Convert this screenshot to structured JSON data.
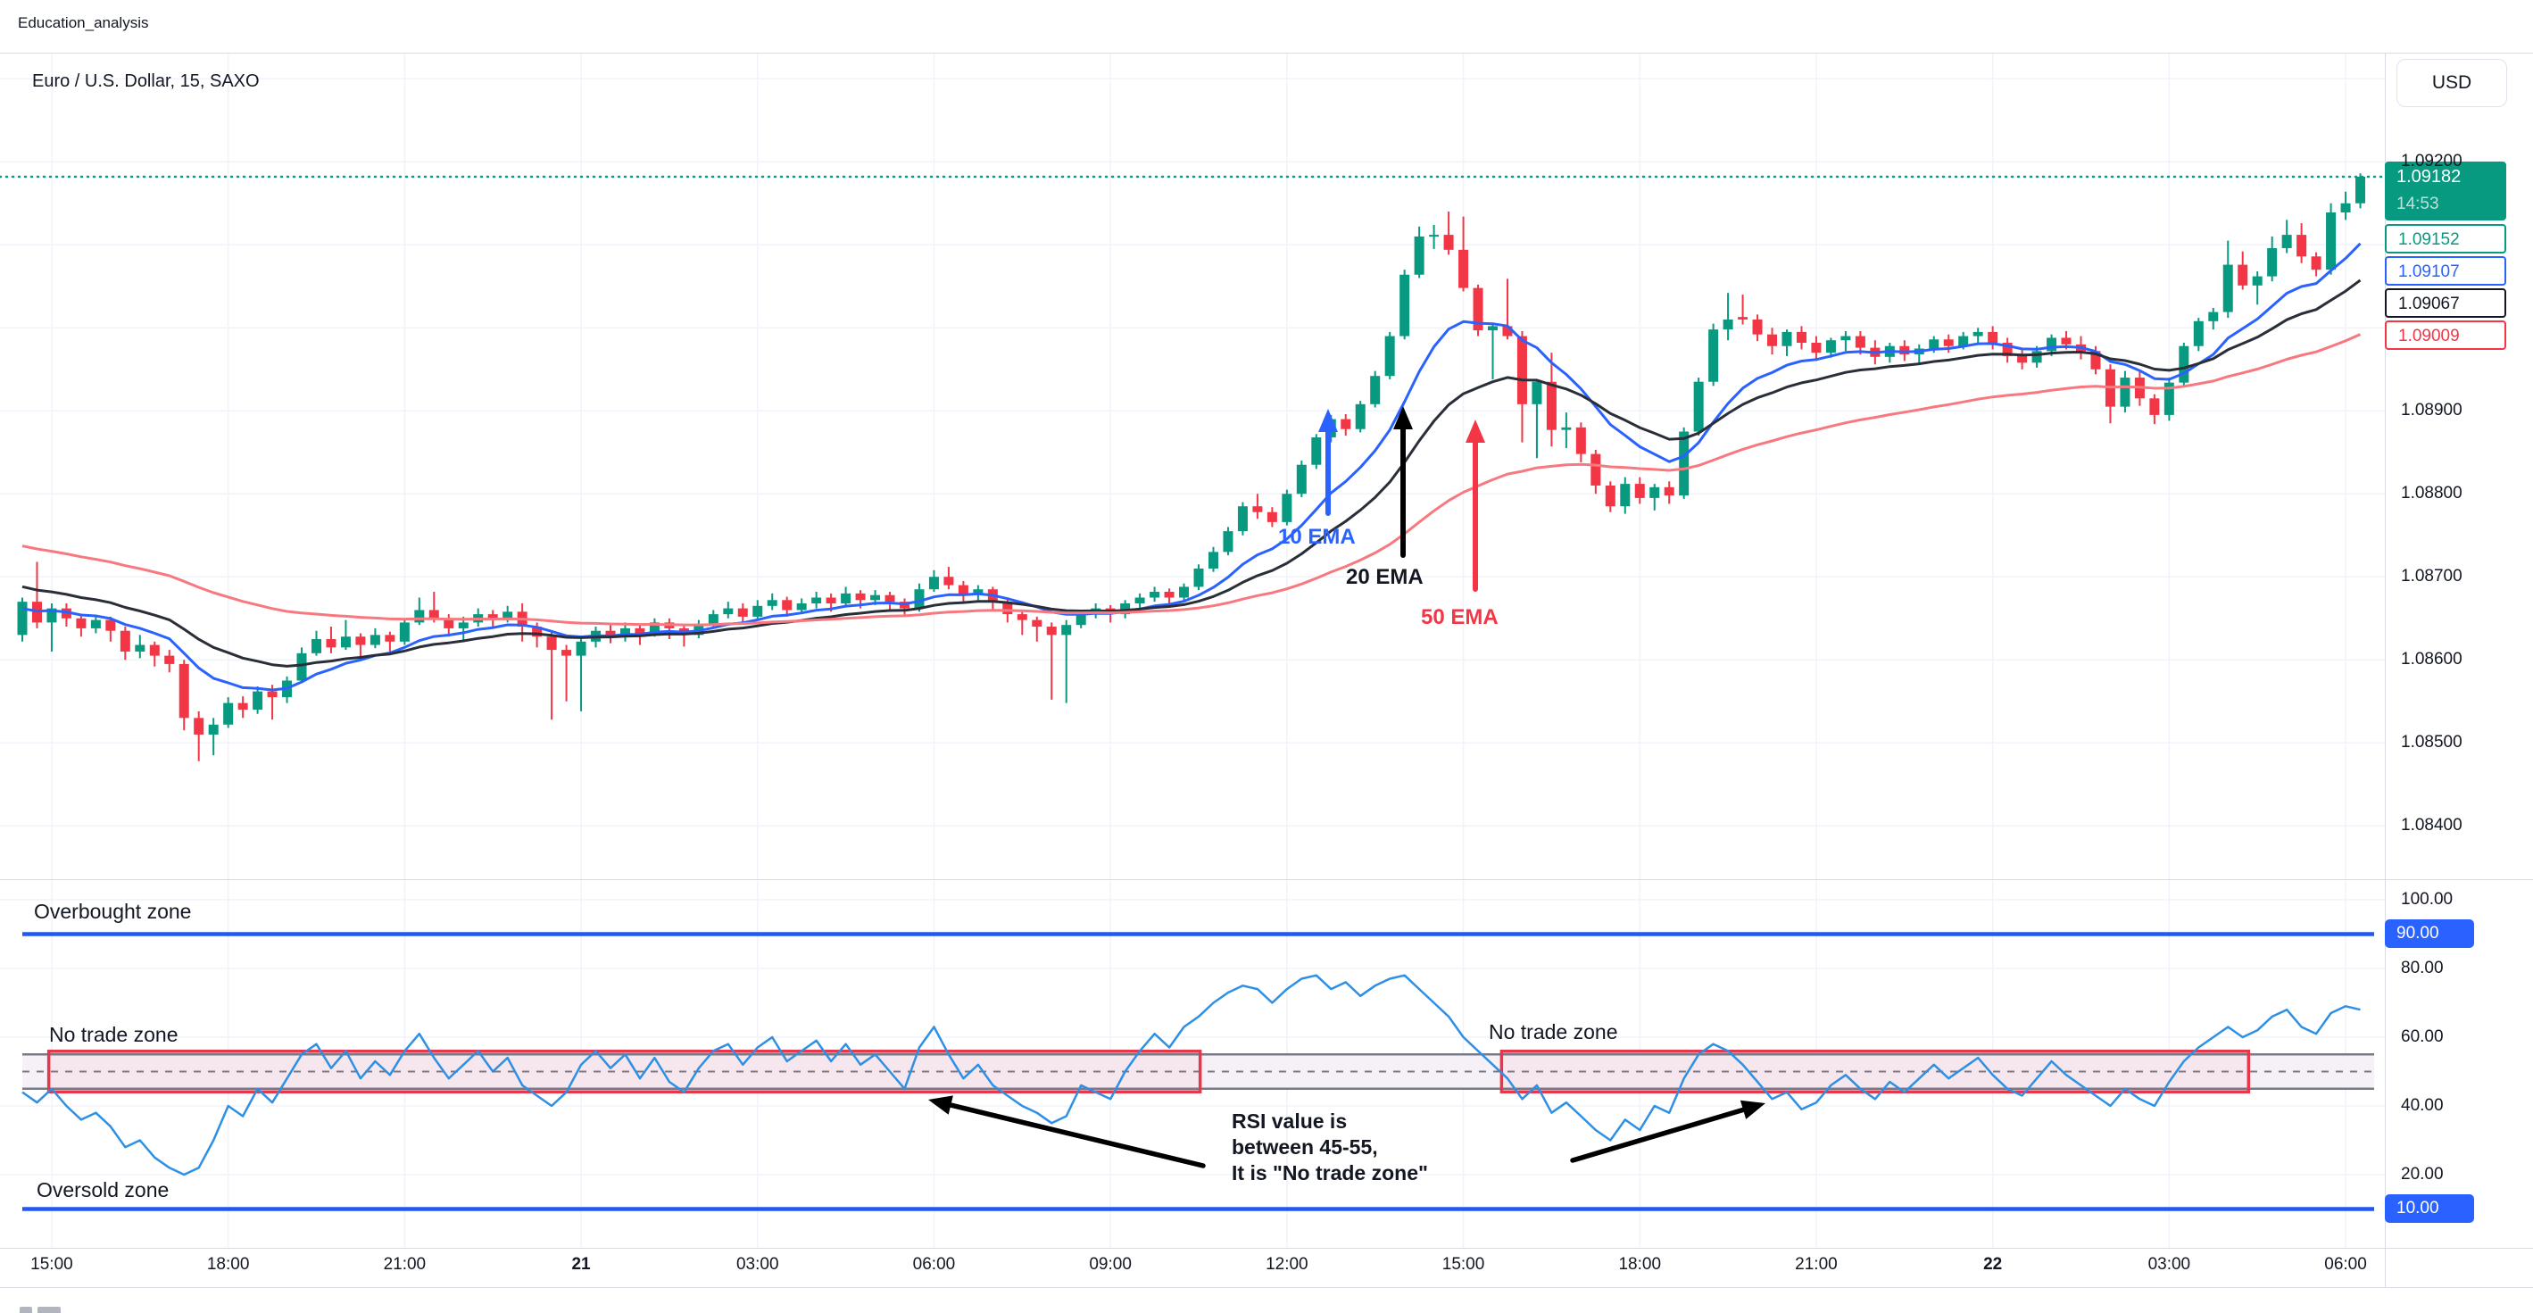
{
  "header": {
    "layout_name": "Education_analysis"
  },
  "chart": {
    "title": "Euro / U.S. Dollar, 15, SAXO",
    "currency_button": "USD",
    "price_scale_labels": [
      {
        "text": "1.09200",
        "value": 1.092
      },
      {
        "text": "1.08900",
        "value": 1.089
      },
      {
        "text": "1.08800",
        "value": 1.088
      },
      {
        "text": "1.08700",
        "value": 1.087
      },
      {
        "text": "1.08600",
        "value": 1.086
      },
      {
        "text": "1.08500",
        "value": 1.085
      },
      {
        "text": "1.08400",
        "value": 1.084
      }
    ],
    "grid_prices": [
      1.084,
      1.085,
      1.086,
      1.087,
      1.088,
      1.089,
      1.09,
      1.091,
      1.092,
      1.093
    ],
    "badges": {
      "last": {
        "price": "1.09182",
        "countdown": "14:53",
        "bg": "#089981"
      },
      "teal": {
        "text": "1.09152",
        "color": "#089981"
      },
      "blue": {
        "text": "1.09107",
        "color": "#2962FF"
      },
      "black": {
        "text": "1.09067",
        "color": "#131722"
      },
      "red": {
        "text": "1.09009",
        "color": "#F23645"
      }
    },
    "time_axis_labels": [
      {
        "text": "15:00",
        "bold": false
      },
      {
        "text": "18:00",
        "bold": false
      },
      {
        "text": "21:00",
        "bold": false
      },
      {
        "text": "21",
        "bold": true
      },
      {
        "text": "03:00",
        "bold": false
      },
      {
        "text": "06:00",
        "bold": false
      },
      {
        "text": "09:00",
        "bold": false
      },
      {
        "text": "12:00",
        "bold": false
      },
      {
        "text": "15:00",
        "bold": false
      },
      {
        "text": "18:00",
        "bold": false
      },
      {
        "text": "21:00",
        "bold": false
      },
      {
        "text": "22",
        "bold": true
      },
      {
        "text": "03:00",
        "bold": false
      },
      {
        "text": "06:00",
        "bold": false
      }
    ],
    "colors": {
      "up": "#089981",
      "down": "#F23645",
      "grid": "#F0F3FA",
      "text": "#131722",
      "axis_border": "#D9DDE3",
      "current_price_line": "#089981"
    }
  },
  "chart_data": {
    "type": "candlestick",
    "title": "Euro / U.S. Dollar, 15, SAXO",
    "interval_minutes": 15,
    "exchange": "SAXO",
    "last_price": 1.09182,
    "price_base": 1.08,
    "price_unit": 1e-05,
    "ohlc_points": [
      [
        630,
        675,
        622,
        670
      ],
      [
        670,
        718,
        638,
        645
      ],
      [
        645,
        668,
        610,
        662
      ],
      [
        662,
        668,
        640,
        650
      ],
      [
        650,
        655,
        628,
        638
      ],
      [
        638,
        654,
        632,
        648
      ],
      [
        648,
        652,
        622,
        635
      ],
      [
        635,
        640,
        600,
        610
      ],
      [
        610,
        630,
        602,
        618
      ],
      [
        618,
        622,
        592,
        605
      ],
      [
        605,
        612,
        585,
        595
      ],
      [
        595,
        600,
        515,
        530
      ],
      [
        530,
        538,
        478,
        510
      ],
      [
        510,
        530,
        485,
        522
      ],
      [
        522,
        555,
        518,
        548
      ],
      [
        548,
        556,
        530,
        540
      ],
      [
        540,
        568,
        535,
        562
      ],
      [
        562,
        570,
        528,
        555
      ],
      [
        555,
        580,
        548,
        575
      ],
      [
        575,
        615,
        572,
        608
      ],
      [
        608,
        635,
        605,
        625
      ],
      [
        625,
        640,
        608,
        615
      ],
      [
        615,
        648,
        612,
        628
      ],
      [
        628,
        632,
        600,
        618
      ],
      [
        618,
        638,
        614,
        630
      ],
      [
        630,
        634,
        610,
        622
      ],
      [
        622,
        650,
        618,
        645
      ],
      [
        645,
        675,
        642,
        660
      ],
      [
        660,
        682,
        645,
        650
      ],
      [
        650,
        655,
        628,
        638
      ],
      [
        638,
        652,
        622,
        645
      ],
      [
        645,
        662,
        640,
        655
      ],
      [
        655,
        660,
        638,
        648
      ],
      [
        648,
        665,
        645,
        658
      ],
      [
        658,
        668,
        622,
        640
      ],
      [
        640,
        645,
        615,
        628
      ],
      [
        628,
        634,
        528,
        612
      ],
      [
        612,
        618,
        550,
        605
      ],
      [
        605,
        628,
        538,
        622
      ],
      [
        622,
        640,
        615,
        635
      ],
      [
        635,
        642,
        620,
        628
      ],
      [
        628,
        645,
        622,
        638
      ],
      [
        638,
        642,
        618,
        632
      ],
      [
        632,
        650,
        628,
        645
      ],
      [
        645,
        650,
        625,
        638
      ],
      [
        638,
        642,
        616,
        630
      ],
      [
        630,
        648,
        626,
        642
      ],
      [
        642,
        660,
        638,
        655
      ],
      [
        655,
        670,
        650,
        662
      ],
      [
        662,
        668,
        645,
        652
      ],
      [
        652,
        672,
        648,
        665
      ],
      [
        665,
        680,
        660,
        672
      ],
      [
        672,
        676,
        652,
        660
      ],
      [
        660,
        674,
        655,
        668
      ],
      [
        668,
        682,
        662,
        675
      ],
      [
        675,
        680,
        658,
        668
      ],
      [
        668,
        688,
        664,
        680
      ],
      [
        680,
        684,
        662,
        672
      ],
      [
        672,
        684,
        666,
        678
      ],
      [
        678,
        682,
        660,
        670
      ],
      [
        670,
        674,
        652,
        662
      ],
      [
        662,
        692,
        658,
        685
      ],
      [
        685,
        708,
        682,
        700
      ],
      [
        700,
        712,
        685,
        690
      ],
      [
        690,
        695,
        670,
        678
      ],
      [
        678,
        690,
        672,
        685
      ],
      [
        685,
        688,
        660,
        670
      ],
      [
        670,
        674,
        645,
        655
      ],
      [
        655,
        660,
        630,
        648
      ],
      [
        648,
        652,
        622,
        640
      ],
      [
        640,
        645,
        552,
        630
      ],
      [
        630,
        648,
        548,
        642
      ],
      [
        642,
        660,
        638,
        655
      ],
      [
        655,
        668,
        650,
        662
      ],
      [
        662,
        666,
        645,
        655
      ],
      [
        655,
        672,
        650,
        668
      ],
      [
        668,
        680,
        662,
        675
      ],
      [
        675,
        688,
        670,
        682
      ],
      [
        682,
        686,
        665,
        675
      ],
      [
        675,
        692,
        670,
        688
      ],
      [
        688,
        715,
        684,
        710
      ],
      [
        710,
        736,
        706,
        730
      ],
      [
        730,
        760,
        726,
        755
      ],
      [
        755,
        790,
        750,
        785
      ],
      [
        785,
        800,
        770,
        778
      ],
      [
        778,
        784,
        760,
        766
      ],
      [
        766,
        805,
        762,
        800
      ],
      [
        800,
        840,
        796,
        835
      ],
      [
        835,
        872,
        830,
        868
      ],
      [
        868,
        895,
        862,
        890
      ],
      [
        890,
        896,
        870,
        878
      ],
      [
        878,
        912,
        874,
        908
      ],
      [
        908,
        948,
        904,
        942
      ],
      [
        942,
        995,
        938,
        990
      ],
      [
        990,
        1070,
        986,
        1064
      ],
      [
        1064,
        1122,
        1060,
        1110
      ],
      [
        1110,
        1124,
        1095,
        1112
      ],
      [
        1112,
        1140,
        1088,
        1094
      ],
      [
        1094,
        1134,
        1044,
        1048
      ],
      [
        1048,
        1052,
        990,
        997
      ],
      [
        997,
        1005,
        938,
        1002
      ],
      [
        1002,
        1059,
        986,
        990
      ],
      [
        990,
        996,
        862,
        908
      ],
      [
        908,
        938,
        843,
        935
      ],
      [
        935,
        970,
        857,
        877
      ],
      [
        877,
        898,
        855,
        880
      ],
      [
        880,
        886,
        838,
        848
      ],
      [
        848,
        853,
        800,
        810
      ],
      [
        810,
        815,
        778,
        785
      ],
      [
        785,
        820,
        776,
        812
      ],
      [
        812,
        820,
        788,
        795
      ],
      [
        795,
        812,
        780,
        808
      ],
      [
        808,
        815,
        788,
        798
      ],
      [
        798,
        880,
        794,
        875
      ],
      [
        875,
        940,
        870,
        935
      ],
      [
        935,
        1005,
        930,
        998
      ],
      [
        998,
        1042,
        985,
        1010
      ],
      [
        1013,
        1040,
        1004,
        1010
      ],
      [
        1010,
        1016,
        984,
        992
      ],
      [
        992,
        1000,
        968,
        978
      ],
      [
        978,
        998,
        966,
        995
      ],
      [
        995,
        1002,
        974,
        982
      ],
      [
        982,
        990,
        960,
        970
      ],
      [
        970,
        988,
        964,
        985
      ],
      [
        985,
        996,
        972,
        990
      ],
      [
        990,
        996,
        968,
        976
      ],
      [
        976,
        985,
        956,
        965
      ],
      [
        965,
        982,
        958,
        978
      ],
      [
        978,
        985,
        960,
        968
      ],
      [
        968,
        980,
        956,
        975
      ],
      [
        975,
        990,
        970,
        986
      ],
      [
        986,
        992,
        970,
        978
      ],
      [
        978,
        995,
        974,
        990
      ],
      [
        990,
        1000,
        980,
        995
      ],
      [
        995,
        1002,
        974,
        982
      ],
      [
        982,
        988,
        958,
        966
      ],
      [
        966,
        975,
        950,
        958
      ],
      [
        958,
        978,
        952,
        972
      ],
      [
        972,
        992,
        966,
        988
      ],
      [
        988,
        996,
        974,
        980
      ],
      [
        980,
        990,
        962,
        972
      ],
      [
        972,
        978,
        944,
        950
      ],
      [
        950,
        956,
        885,
        905
      ],
      [
        905,
        948,
        898,
        940
      ],
      [
        940,
        948,
        906,
        915
      ],
      [
        915,
        920,
        884,
        895
      ],
      [
        895,
        940,
        888,
        934
      ],
      [
        934,
        982,
        930,
        978
      ],
      [
        978,
        1012,
        972,
        1008
      ],
      [
        1008,
        1024,
        998,
        1019
      ],
      [
        1019,
        1105,
        1012,
        1076
      ],
      [
        1076,
        1092,
        1046,
        1051
      ],
      [
        1051,
        1068,
        1028,
        1062
      ],
      [
        1062,
        1110,
        1056,
        1096
      ],
      [
        1096,
        1130,
        1090,
        1112
      ],
      [
        1112,
        1126,
        1078,
        1086
      ],
      [
        1086,
        1091,
        1062,
        1070
      ],
      [
        1070,
        1150,
        1064,
        1139
      ],
      [
        1139,
        1164,
        1130,
        1150
      ],
      [
        1150,
        1186,
        1144,
        1182
      ]
    ],
    "emas": [
      {
        "period": 10,
        "label": "10 EMA",
        "color": "#2962FF",
        "last_value": 1.09107,
        "seed_points": 660
      },
      {
        "period": 20,
        "label": "20 EMA",
        "color": "#2A2E39",
        "last_value": 1.09067,
        "seed_points": 690
      },
      {
        "period": 50,
        "label": "50 EMA",
        "color": "#F7797F",
        "last_value": 1.09009,
        "seed_points": 740
      }
    ],
    "rsi": {
      "line_color": "#2E90E5",
      "zone_line_color": "#2356F2",
      "overbought_level": 90,
      "oversold_level": 10,
      "band": {
        "lower": 45,
        "upper": 55,
        "mid": 50
      },
      "scale_labels": [
        {
          "text": "100.00",
          "value": 100
        },
        {
          "text": "80.00",
          "value": 80
        },
        {
          "text": "60.00",
          "value": 60
        },
        {
          "text": "40.00",
          "value": 40
        },
        {
          "text": "20.00",
          "value": 20
        }
      ],
      "overbought_badge": {
        "text": "90.00",
        "value": 90
      },
      "oversold_badge": {
        "text": "10.00",
        "value": 10
      },
      "grid_levels": [
        20,
        40,
        60,
        80,
        100
      ],
      "no_trade_boxes": [
        {
          "from_index": 1.8,
          "to_index": 80.1
        },
        {
          "from_index": 100.6,
          "to_index": 151.4
        }
      ],
      "values": [
        44,
        41,
        45,
        40,
        36,
        38,
        34,
        28,
        30,
        25,
        22,
        20,
        22,
        30,
        40,
        37,
        45,
        41,
        48,
        55,
        58,
        51,
        56,
        48,
        53,
        49,
        56,
        61,
        54,
        48,
        52,
        56,
        50,
        54,
        46,
        43,
        40,
        44,
        52,
        56,
        51,
        55,
        48,
        54,
        47,
        44,
        51,
        56,
        58,
        52,
        57,
        60,
        53,
        56,
        59,
        53,
        58,
        52,
        55,
        50,
        45,
        57,
        63,
        55,
        48,
        52,
        46,
        43,
        40,
        38,
        35,
        37,
        46,
        44,
        42,
        50,
        56,
        61,
        57,
        63,
        66,
        70,
        73,
        75,
        74,
        70,
        74,
        77,
        78,
        74,
        76,
        72,
        75,
        77,
        78,
        74,
        70,
        66,
        60,
        56,
        52,
        48,
        42,
        46,
        38,
        41,
        37,
        33,
        30,
        36,
        33,
        40,
        38,
        48,
        55,
        58,
        56,
        52,
        47,
        42,
        44,
        39,
        41,
        46,
        49,
        45,
        42,
        47,
        44,
        48,
        52,
        48,
        51,
        54,
        49,
        45,
        43,
        48,
        53,
        49,
        46,
        43,
        40,
        45,
        42,
        40,
        47,
        53,
        57,
        60,
        63,
        60,
        62,
        66,
        68,
        63,
        61,
        67,
        69,
        68
      ]
    },
    "annotations": {
      "overbought_label": "Overbought zone",
      "oversold_label": "Oversold zone",
      "no_trade_label_1": "No trade zone",
      "no_trade_label_2": "No trade zone",
      "note_lines": [
        "RSI value is",
        "between 45-55,",
        "It is \"No trade zone\""
      ]
    }
  }
}
